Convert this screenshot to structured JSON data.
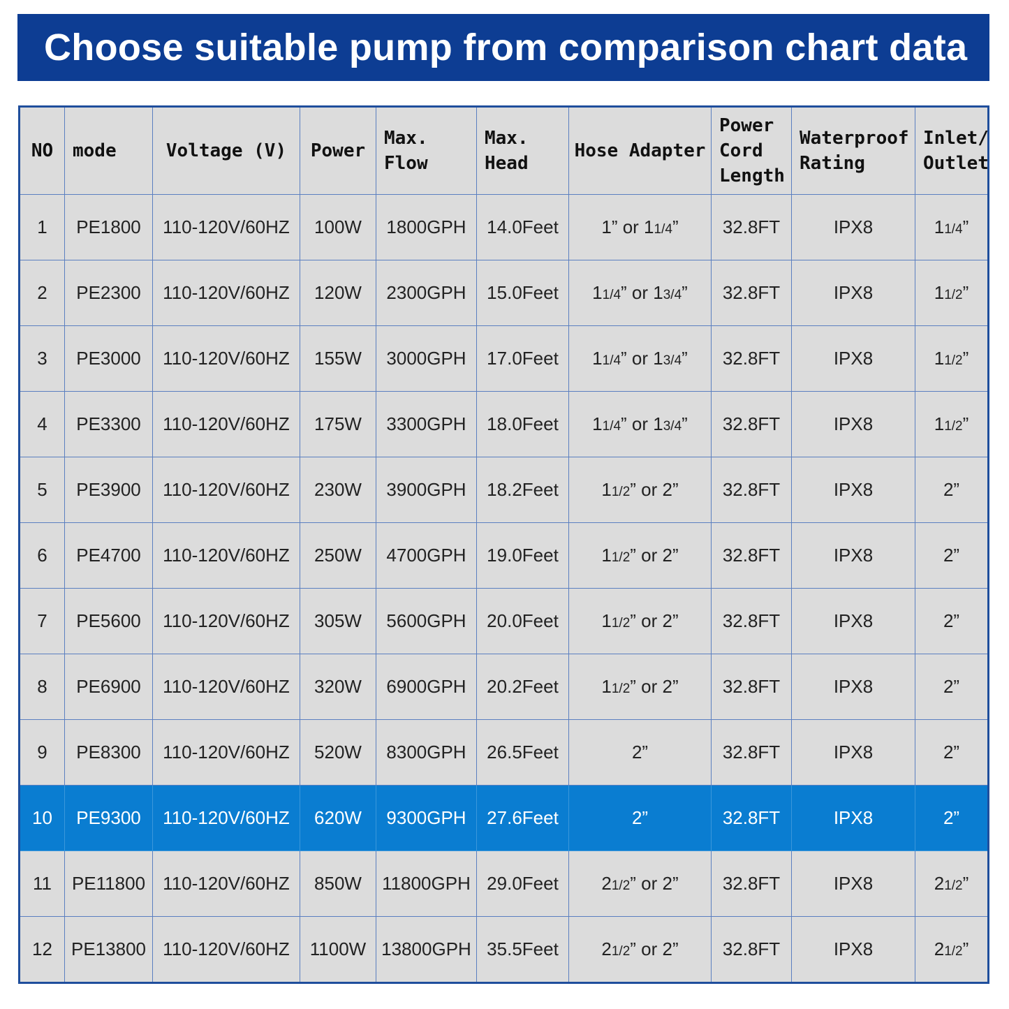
{
  "banner": {
    "title": "Choose suitable pump from comparison chart data"
  },
  "table": {
    "headers": [
      [
        "NO"
      ],
      [
        "mode"
      ],
      [
        "Voltage (V)"
      ],
      [
        "Power"
      ],
      [
        "Max.",
        "Flow"
      ],
      [
        "Max.",
        "Head"
      ],
      [
        "Hose Adapter"
      ],
      [
        "Power",
        "Cord",
        "Length"
      ],
      [
        "Waterproof",
        "Rating"
      ],
      [
        "Inlet/",
        "Outlet"
      ]
    ],
    "highlight_color": "#0a7dd1",
    "rows": [
      {
        "no": "1",
        "model": "PE1800",
        "voltage": "110-120V/60HZ",
        "power": "100W",
        "flow": "1800GPH",
        "head": "14.0Feet",
        "hose": [
          "1” or 1",
          "1/4",
          "”"
        ],
        "cord": "32.8FT",
        "rating": "IPX8",
        "inlet": [
          "1",
          "1/4",
          "”"
        ],
        "highlight": false
      },
      {
        "no": "2",
        "model": "PE2300",
        "voltage": "110-120V/60HZ",
        "power": "120W",
        "flow": "2300GPH",
        "head": "15.0Feet",
        "hose": [
          "1",
          "1/4",
          "” or 1",
          "3/4",
          "”"
        ],
        "cord": "32.8FT",
        "rating": "IPX8",
        "inlet": [
          "1",
          "1/2",
          "”"
        ],
        "highlight": false
      },
      {
        "no": "3",
        "model": "PE3000",
        "voltage": "110-120V/60HZ",
        "power": "155W",
        "flow": "3000GPH",
        "head": "17.0Feet",
        "hose": [
          "1",
          "1/4",
          "” or 1",
          "3/4",
          "”"
        ],
        "cord": "32.8FT",
        "rating": "IPX8",
        "inlet": [
          "1",
          "1/2",
          "”"
        ],
        "highlight": false
      },
      {
        "no": "4",
        "model": "PE3300",
        "voltage": "110-120V/60HZ",
        "power": "175W",
        "flow": "3300GPH",
        "head": "18.0Feet",
        "hose": [
          "1",
          "1/4",
          "” or 1",
          "3/4",
          "”"
        ],
        "cord": "32.8FT",
        "rating": "IPX8",
        "inlet": [
          "1",
          "1/2",
          "”"
        ],
        "highlight": false
      },
      {
        "no": "5",
        "model": "PE3900",
        "voltage": "110-120V/60HZ",
        "power": "230W",
        "flow": "3900GPH",
        "head": "18.2Feet",
        "hose": [
          "1",
          "1/2",
          "” or 2”"
        ],
        "cord": "32.8FT",
        "rating": "IPX8",
        "inlet": [
          "2”"
        ],
        "highlight": false
      },
      {
        "no": "6",
        "model": "PE4700",
        "voltage": "110-120V/60HZ",
        "power": "250W",
        "flow": "4700GPH",
        "head": "19.0Feet",
        "hose": [
          "1",
          "1/2",
          "” or 2”"
        ],
        "cord": "32.8FT",
        "rating": "IPX8",
        "inlet": [
          "2”"
        ],
        "highlight": false
      },
      {
        "no": "7",
        "model": "PE5600",
        "voltage": "110-120V/60HZ",
        "power": "305W",
        "flow": "5600GPH",
        "head": "20.0Feet",
        "hose": [
          "1",
          "1/2",
          "” or 2”"
        ],
        "cord": "32.8FT",
        "rating": "IPX8",
        "inlet": [
          "2”"
        ],
        "highlight": false
      },
      {
        "no": "8",
        "model": "PE6900",
        "voltage": "110-120V/60HZ",
        "power": "320W",
        "flow": "6900GPH",
        "head": "20.2Feet",
        "hose": [
          "1",
          "1/2",
          "” or 2”"
        ],
        "cord": "32.8FT",
        "rating": "IPX8",
        "inlet": [
          "2”"
        ],
        "highlight": false
      },
      {
        "no": "9",
        "model": "PE8300",
        "voltage": "110-120V/60HZ",
        "power": "520W",
        "flow": "8300GPH",
        "head": "26.5Feet",
        "hose": [
          "2”"
        ],
        "cord": "32.8FT",
        "rating": "IPX8",
        "inlet": [
          "2”"
        ],
        "highlight": false
      },
      {
        "no": "10",
        "model": "PE9300",
        "voltage": "110-120V/60HZ",
        "power": "620W",
        "flow": "9300GPH",
        "head": "27.6Feet",
        "hose": [
          "2”"
        ],
        "cord": "32.8FT",
        "rating": "IPX8",
        "inlet": [
          "2”"
        ],
        "highlight": true
      },
      {
        "no": "11",
        "model": "PE11800",
        "voltage": "110-120V/60HZ",
        "power": "850W",
        "flow": "11800GPH",
        "head": "29.0Feet",
        "hose": [
          "2",
          "1/2",
          "” or 2”"
        ],
        "cord": "32.8FT",
        "rating": "IPX8",
        "inlet": [
          "2",
          "1/2",
          "”"
        ],
        "highlight": false
      },
      {
        "no": "12",
        "model": "PE13800",
        "voltage": "110-120V/60HZ",
        "power": "1100W",
        "flow": "13800GPH",
        "head": "35.5Feet",
        "hose": [
          "2",
          "1/2",
          "” or 2”"
        ],
        "cord": "32.8FT",
        "rating": "IPX8",
        "inlet": [
          "2",
          "1/2",
          "”"
        ],
        "highlight": false
      }
    ]
  }
}
